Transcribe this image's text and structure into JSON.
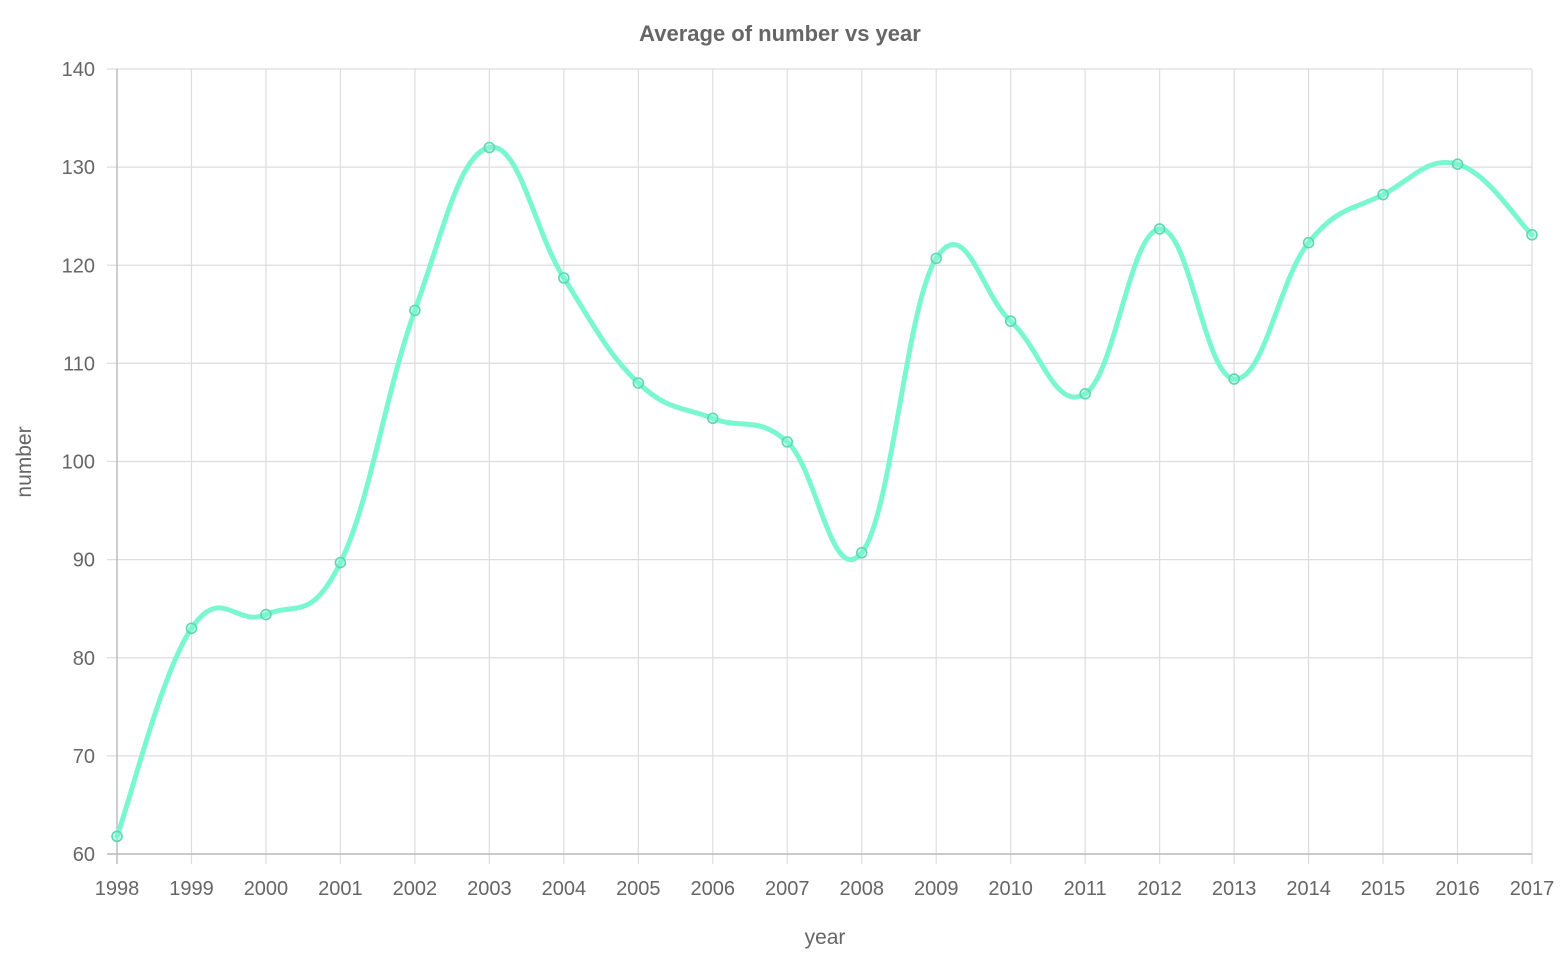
{
  "chart_data": {
    "type": "line",
    "title": "Average of number vs year",
    "xlabel": "year",
    "ylabel": "number",
    "ylim": [
      60,
      140
    ],
    "yticks": [
      60,
      70,
      80,
      90,
      100,
      110,
      120,
      130,
      140
    ],
    "categories": [
      "1998",
      "1999",
      "2000",
      "2001",
      "2002",
      "2003",
      "2004",
      "2005",
      "2006",
      "2007",
      "2008",
      "2009",
      "2010",
      "2011",
      "2012",
      "2013",
      "2014",
      "2015",
      "2016",
      "2017"
    ],
    "series": [
      {
        "color": "#7af7cf",
        "values": [
          61.8,
          83.0,
          84.4,
          89.7,
          115.4,
          132.0,
          118.7,
          108.0,
          104.4,
          102.0,
          90.7,
          120.7,
          114.3,
          106.9,
          123.7,
          108.4,
          122.3,
          127.2,
          130.3,
          123.1
        ]
      }
    ],
    "grid": true,
    "legend": "none"
  }
}
